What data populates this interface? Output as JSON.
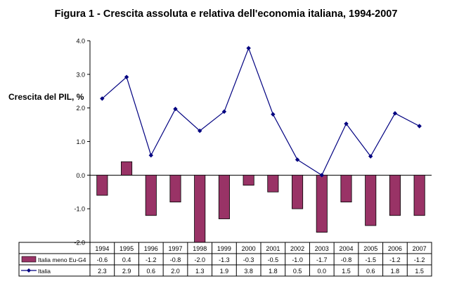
{
  "chart_data": {
    "type": "bar+line",
    "title": "Figura 1 - Crescita assoluta e relativa dell'economia italiana, 1994-2007",
    "ylabel": "Crescita del PIL, %",
    "ylim": [
      -2.0,
      4.0
    ],
    "yticks": [
      "4.0",
      "3.0",
      "2.0",
      "1.0",
      "0.0",
      "-1.0",
      "-2.0"
    ],
    "ytick_values": [
      4.0,
      3.0,
      2.0,
      1.0,
      0.0,
      -1.0,
      -2.0
    ],
    "grid": false,
    "categories": [
      "1994",
      "1995",
      "1996",
      "1997",
      "1998",
      "1999",
      "2000",
      "2001",
      "2002",
      "2003",
      "2004",
      "2005",
      "2006",
      "2007"
    ],
    "series": [
      {
        "name": "Italia meno Eu-G4",
        "kind": "bar",
        "color": "#993366",
        "values": [
          -0.6,
          0.4,
          -1.2,
          -0.8,
          -2.0,
          -1.3,
          -0.3,
          -0.5,
          -1.0,
          -1.7,
          -0.8,
          -1.5,
          -1.2,
          -1.2
        ],
        "labels": [
          "-0.6",
          "0.4",
          "-1.2",
          "-0.8",
          "-2.0",
          "-1.3",
          "-0.3",
          "-0.5",
          "-1.0",
          "-1.7",
          "-0.8",
          "-1.5",
          "-1.2",
          "-1.2"
        ]
      },
      {
        "name": "Italia",
        "kind": "line",
        "color": "#000080",
        "values": [
          2.28,
          2.92,
          0.59,
          1.97,
          1.32,
          1.89,
          3.78,
          1.81,
          0.46,
          0.0,
          1.53,
          0.56,
          1.84,
          1.46
        ],
        "labels": [
          "2.3",
          "2.9",
          "0.6",
          "2.0",
          "1.3",
          "1.9",
          "3.8",
          "1.8",
          "0.5",
          "0.0",
          "1.5",
          "0.6",
          "1.8",
          "1.5"
        ]
      }
    ],
    "legend": "data table below the plot"
  }
}
